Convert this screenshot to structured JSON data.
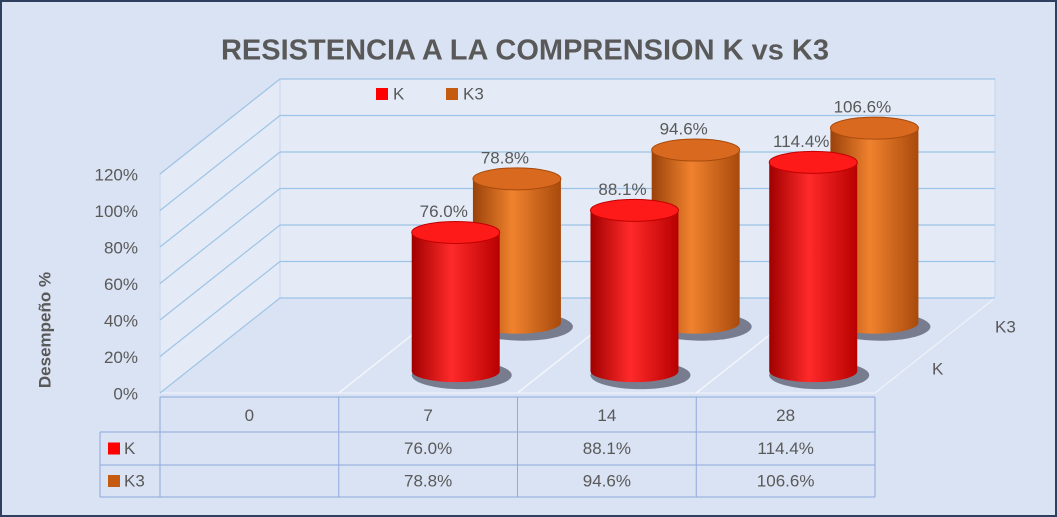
{
  "chart_data": {
    "type": "bar3d",
    "title": "RESISTENCIA A LA COMPRENSION K vs K3",
    "y_label": "Desempeño %",
    "categories": [
      "0",
      "7",
      "14",
      "28"
    ],
    "series": [
      {
        "name": "K",
        "color": "#ff0000",
        "values": [
          null,
          76.0,
          88.1,
          114.4
        ],
        "value_labels": [
          null,
          "76.0%",
          "88.1%",
          "114.4%"
        ]
      },
      {
        "name": "K3",
        "color": "#c55a11",
        "values": [
          null,
          78.8,
          94.6,
          106.6
        ],
        "value_labels": [
          null,
          "78.8%",
          "94.6%",
          "106.6%"
        ]
      }
    ],
    "ylim": [
      0,
      120
    ],
    "yticks": [
      {
        "value": 0,
        "label": "0%"
      },
      {
        "value": 20,
        "label": "20%"
      },
      {
        "value": 40,
        "label": "40%"
      },
      {
        "value": 60,
        "label": "60%"
      },
      {
        "value": 80,
        "label": "80%"
      },
      {
        "value": 100,
        "label": "100%"
      },
      {
        "value": 120,
        "label": "120%"
      }
    ],
    "grid": true,
    "legend": "top"
  }
}
